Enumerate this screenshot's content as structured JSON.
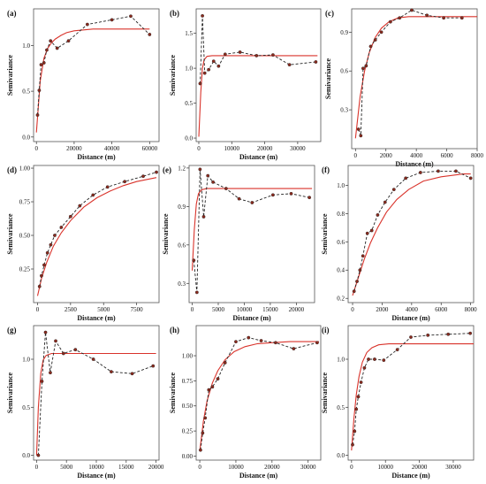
{
  "figure": {
    "fit_color": "#d9332b",
    "point_color": "#8b2a1e",
    "line_color": "#222222",
    "frame_color": "#555555"
  },
  "chart_data": [
    {
      "id": "a",
      "panel_label": "(a)",
      "type": "line",
      "xlabel": "Distance (m)",
      "ylabel": "Semivariance",
      "xlim": [
        -1500,
        65000
      ],
      "ylim": [
        -0.05,
        1.4
      ],
      "xticks": [
        0,
        20000,
        40000,
        60000
      ],
      "xtick_labels": [
        "0",
        "20000",
        "40000",
        "60000"
      ],
      "yticks": [
        0.0,
        0.5,
        1.0
      ],
      "ytick_labels": [
        "0.0",
        "0.5",
        "1.0"
      ],
      "series": [
        {
          "kind": "empirical",
          "x": [
            600,
            1500,
            2500,
            4000,
            5500,
            7500,
            11000,
            17000,
            27000,
            40000,
            50000,
            60000
          ],
          "y": [
            0.24,
            0.51,
            0.79,
            0.81,
            0.95,
            1.05,
            0.97,
            1.05,
            1.23,
            1.28,
            1.32,
            1.12
          ]
        },
        {
          "kind": "model",
          "x": [
            0,
            2000,
            4000,
            6000,
            8000,
            10000,
            13000,
            16000,
            20000,
            25000,
            30000,
            40000,
            50000,
            60000
          ],
          "y": [
            0.05,
            0.61,
            0.86,
            0.97,
            1.03,
            1.07,
            1.11,
            1.14,
            1.16,
            1.17,
            1.18,
            1.18,
            1.18,
            1.18
          ]
        }
      ]
    },
    {
      "id": "b",
      "panel_label": "(b)",
      "type": "line",
      "xlabel": "Distance (m)",
      "ylabel": "Semivariance",
      "xlim": [
        -800,
        37000
      ],
      "ylim": [
        -0.05,
        1.85
      ],
      "xticks": [
        0,
        10000,
        20000,
        30000
      ],
      "xtick_labels": [
        "0",
        "10000",
        "20000",
        "30000"
      ],
      "yticks": [
        0.0,
        0.5,
        1.0,
        1.5
      ],
      "ytick_labels": [
        "0.0",
        "0.5",
        "1.0",
        "1.5"
      ],
      "series": [
        {
          "kind": "empirical",
          "x": [
            400,
            1100,
            1800,
            3000,
            4500,
            6000,
            8000,
            12500,
            17500,
            22500,
            27500,
            35500
          ],
          "y": [
            0.78,
            1.75,
            0.93,
            0.98,
            1.1,
            1.03,
            1.2,
            1.23,
            1.18,
            1.19,
            1.05,
            1.09
          ]
        },
        {
          "kind": "model",
          "x": [
            0,
            600,
            1100,
            1600,
            2500,
            4000,
            8000,
            20000,
            36000
          ],
          "y": [
            0.02,
            0.65,
            1.0,
            1.12,
            1.17,
            1.18,
            1.18,
            1.18,
            1.18
          ]
        }
      ]
    },
    {
      "id": "c",
      "panel_label": "(c)",
      "type": "line",
      "xlabel": "Distance (m)",
      "ylabel": "Semivariance",
      "xlim": [
        -250,
        8000
      ],
      "ylim": [
        0.0,
        1.08
      ],
      "xticks": [
        0,
        2000,
        4000,
        6000,
        8000
      ],
      "xtick_labels": [
        "0",
        "2000",
        "4000",
        "6000",
        "8000"
      ],
      "yticks": [
        0.3,
        0.6,
        0.9
      ],
      "ytick_labels": [
        "0.3",
        "0.6",
        "0.9"
      ],
      "series": [
        {
          "kind": "empirical",
          "x": [
            200,
            350,
            500,
            700,
            1000,
            1300,
            1700,
            2300,
            2900,
            3700,
            4700,
            5800,
            7000
          ],
          "y": [
            0.15,
            0.1,
            0.62,
            0.64,
            0.79,
            0.84,
            0.9,
            0.98,
            1.01,
            1.07,
            1.03,
            1.01,
            1.01
          ]
        },
        {
          "kind": "model",
          "x": [
            0,
            300,
            600,
            900,
            1300,
            1700,
            2200,
            2800,
            3500,
            4500,
            6000,
            8000
          ],
          "y": [
            0.08,
            0.4,
            0.6,
            0.74,
            0.86,
            0.93,
            0.98,
            1.01,
            1.02,
            1.02,
            1.02,
            1.02
          ]
        }
      ]
    },
    {
      "id": "d",
      "panel_label": "(d)",
      "type": "line",
      "xlabel": "Distance (m)",
      "ylabel": "Semivariance",
      "xlim": [
        -300,
        9200
      ],
      "ylim": [
        0.0,
        1.02
      ],
      "xticks": [
        0,
        2500,
        5000,
        7500
      ],
      "xtick_labels": [
        "0",
        "2500",
        "5000",
        "7500"
      ],
      "yticks": [
        0.25,
        0.5,
        0.75,
        1.0
      ],
      "ytick_labels": [
        "0.25",
        "0.50",
        "0.75",
        "1.00"
      ],
      "series": [
        {
          "kind": "empirical",
          "x": [
            150,
            300,
            500,
            750,
            1000,
            1300,
            1800,
            2500,
            3200,
            4200,
            5300,
            6600,
            8000,
            9000
          ],
          "y": [
            0.12,
            0.2,
            0.28,
            0.37,
            0.43,
            0.5,
            0.56,
            0.64,
            0.72,
            0.8,
            0.86,
            0.9,
            0.94,
            0.97
          ]
        },
        {
          "kind": "model",
          "x": [
            0,
            300,
            700,
            1200,
            1800,
            2500,
            3500,
            4500,
            5500,
            6500,
            7500,
            9000
          ],
          "y": [
            0.05,
            0.18,
            0.3,
            0.42,
            0.52,
            0.61,
            0.71,
            0.78,
            0.83,
            0.87,
            0.9,
            0.93
          ]
        }
      ]
    },
    {
      "id": "e",
      "panel_label": "(e)",
      "type": "line",
      "xlabel": "Distance (m)",
      "ylabel": "Semivariance",
      "xlim": [
        -600,
        23500
      ],
      "ylim": [
        0.15,
        1.22
      ],
      "xticks": [
        0,
        5000,
        10000,
        15000,
        20000
      ],
      "xtick_labels": [
        "0",
        "5000",
        "10000",
        "15000",
        "20000"
      ],
      "yticks": [
        0.3,
        0.6,
        0.9,
        1.2
      ],
      "ytick_labels": [
        "0.3",
        "0.6",
        "0.9",
        "1.2"
      ],
      "series": [
        {
          "kind": "empirical",
          "x": [
            300,
            900,
            1500,
            2200,
            3000,
            4000,
            6500,
            9000,
            11500,
            15500,
            19000,
            22500
          ],
          "y": [
            0.48,
            0.23,
            1.19,
            0.82,
            1.14,
            1.09,
            1.04,
            0.96,
            0.93,
            0.99,
            1.0,
            0.97
          ]
        },
        {
          "kind": "model",
          "x": [
            0,
            400,
            800,
            1200,
            1800,
            2800,
            5000,
            10000,
            23000
          ],
          "y": [
            0.4,
            0.72,
            0.92,
            1.0,
            1.03,
            1.04,
            1.04,
            1.04,
            1.04
          ]
        }
      ]
    },
    {
      "id": "f",
      "panel_label": "(f)",
      "type": "line",
      "xlabel": "Distance (m)",
      "ylabel": "Semivariance",
      "xlim": [
        -300,
        8200
      ],
      "ylim": [
        0.17,
        1.14
      ],
      "xticks": [
        0,
        2000,
        4000,
        6000,
        8000
      ],
      "xtick_labels": [
        "0",
        "2000",
        "4000",
        "6000",
        "8000"
      ],
      "yticks": [
        0.2,
        0.4,
        0.6,
        0.8,
        1.0
      ],
      "ytick_labels": [
        "0.2",
        "0.4",
        "0.6",
        "0.8",
        "1.0"
      ],
      "series": [
        {
          "kind": "empirical",
          "x": [
            100,
            300,
            500,
            700,
            1000,
            1300,
            1700,
            2200,
            2800,
            3600,
            4600,
            5800,
            7000,
            8000
          ],
          "y": [
            0.25,
            0.32,
            0.4,
            0.5,
            0.66,
            0.68,
            0.79,
            0.88,
            0.97,
            1.05,
            1.09,
            1.1,
            1.1,
            1.05
          ]
        },
        {
          "kind": "model",
          "x": [
            0,
            400,
            800,
            1200,
            1700,
            2300,
            3000,
            3800,
            4800,
            6000,
            7500,
            8000
          ],
          "y": [
            0.22,
            0.35,
            0.48,
            0.59,
            0.7,
            0.81,
            0.9,
            0.97,
            1.03,
            1.06,
            1.08,
            1.08
          ]
        }
      ]
    },
    {
      "id": "g",
      "panel_label": "(g)",
      "type": "line",
      "xlabel": "Distance (m)",
      "ylabel": "Semivariance",
      "xlim": [
        -500,
        20500
      ],
      "ylim": [
        -0.05,
        1.35
      ],
      "xticks": [
        0,
        5000,
        10000,
        15000,
        20000
      ],
      "xtick_labels": [
        "0",
        "5000",
        "10000",
        "15000",
        "20000"
      ],
      "yticks": [
        0.0,
        0.5,
        1.0
      ],
      "ytick_labels": [
        "0.0",
        "0.5",
        "1.0"
      ],
      "series": [
        {
          "kind": "empirical",
          "x": [
            300,
            900,
            1500,
            2300,
            3200,
            4500,
            6500,
            9500,
            12500,
            16000,
            19500
          ],
          "y": [
            0.0,
            0.77,
            1.28,
            0.86,
            1.19,
            1.06,
            1.1,
            1.0,
            0.87,
            0.85,
            0.93
          ]
        },
        {
          "kind": "model",
          "x": [
            0,
            300,
            700,
            1100,
            1600,
            2500,
            5000,
            10000,
            20000
          ],
          "y": [
            0.0,
            0.5,
            0.85,
            0.99,
            1.04,
            1.06,
            1.06,
            1.06,
            1.06
          ]
        }
      ]
    },
    {
      "id": "h",
      "panel_label": "(h)",
      "type": "line",
      "xlabel": "Distance (m)",
      "ylabel": "Semivariance",
      "xlim": [
        -1000,
        33500
      ],
      "ylim": [
        -0.04,
        1.3
      ],
      "xticks": [
        0,
        10000,
        20000,
        30000
      ],
      "xtick_labels": [
        "0",
        "10000",
        "20000",
        "30000"
      ],
      "yticks": [
        0.0,
        0.25,
        0.5,
        0.75,
        1.0
      ],
      "ytick_labels": [
        "0.00",
        "0.25",
        "0.50",
        "0.75",
        "1.00"
      ],
      "series": [
        {
          "kind": "empirical",
          "x": [
            200,
            800,
            1500,
            2500,
            3500,
            5000,
            7000,
            10000,
            13500,
            17000,
            21000,
            26000,
            32500
          ],
          "y": [
            0.06,
            0.23,
            0.38,
            0.66,
            0.69,
            0.77,
            0.93,
            1.14,
            1.18,
            1.15,
            1.13,
            1.07,
            1.13
          ]
        },
        {
          "kind": "model",
          "x": [
            0,
            1000,
            2000,
            3500,
            5000,
            7000,
            9500,
            12500,
            16000,
            20000,
            25000,
            33000
          ],
          "y": [
            0.05,
            0.35,
            0.55,
            0.73,
            0.85,
            0.96,
            1.04,
            1.09,
            1.12,
            1.13,
            1.14,
            1.14
          ]
        }
      ]
    },
    {
      "id": "i",
      "panel_label": "(i)",
      "type": "line",
      "xlabel": "Distance (m)",
      "ylabel": "Semivariance",
      "xlim": [
        -1000,
        36000
      ],
      "ylim": [
        -0.05,
        1.35
      ],
      "xticks": [
        0,
        10000,
        20000,
        30000
      ],
      "xtick_labels": [
        "0",
        "10000",
        "20000",
        "30000"
      ],
      "yticks": [
        0.0,
        0.5,
        1.0
      ],
      "ytick_labels": [
        "0.0",
        "0.5",
        "1.0"
      ],
      "series": [
        {
          "kind": "empirical",
          "x": [
            300,
            900,
            1400,
            2000,
            2800,
            3800,
            5000,
            6800,
            9500,
            13500,
            17500,
            22500,
            28500,
            35000
          ],
          "y": [
            0.11,
            0.25,
            0.48,
            0.61,
            0.76,
            0.91,
            1.0,
            1.0,
            0.99,
            1.1,
            1.23,
            1.25,
            1.26,
            1.27
          ]
        },
        {
          "kind": "model",
          "x": [
            0,
            700,
            1400,
            2200,
            3200,
            4500,
            6000,
            8000,
            11000,
            15000,
            36000
          ],
          "y": [
            0.05,
            0.38,
            0.63,
            0.82,
            0.97,
            1.07,
            1.12,
            1.15,
            1.16,
            1.16,
            1.16
          ]
        }
      ]
    }
  ]
}
